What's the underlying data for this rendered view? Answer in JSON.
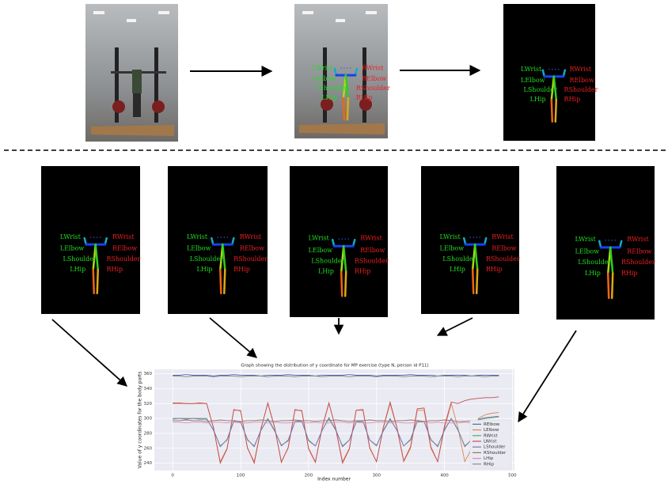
{
  "keypoint_labels": [
    "LWrist",
    "RWrist",
    "LElbow",
    "RElbow",
    "LShoulder",
    "RShoulder",
    "LHip",
    "RHip"
  ],
  "chart_data": {
    "type": "line",
    "title": "Graph showing the distribution of y coordinate for MP exercise (type N, person id P11)",
    "xlabel": "Index number",
    "ylabel": "Value of y coordinates for the body parts",
    "x": [
      0,
      10,
      20,
      30,
      40,
      50,
      60,
      70,
      80,
      90,
      100,
      110,
      120,
      130,
      140,
      150,
      160,
      170,
      180,
      190,
      200,
      210,
      220,
      230,
      240,
      250,
      260,
      270,
      280,
      290,
      300,
      310,
      320,
      330,
      340,
      350,
      360,
      370,
      380,
      390,
      400,
      410,
      420,
      430,
      440,
      450,
      460,
      470,
      480
    ],
    "xlim": [
      -27,
      503
    ],
    "xticks": [
      0,
      100,
      200,
      300,
      400,
      500
    ],
    "ylim": [
      230,
      366
    ],
    "yticks": [
      240,
      260,
      280,
      300,
      320,
      340,
      360
    ],
    "grid": true,
    "legend": "lower right",
    "series": [
      {
        "name": "RElbow",
        "color": "#4c72b0",
        "values": [
          358,
          358,
          359,
          358,
          358,
          358,
          357,
          358,
          358,
          359,
          358,
          358,
          358,
          357,
          358,
          358,
          358,
          359,
          358,
          358,
          358,
          357,
          358,
          358,
          358,
          358,
          359,
          358,
          358,
          358,
          357,
          358,
          358,
          358,
          358,
          359,
          358,
          358,
          358,
          357,
          358,
          358,
          358,
          358,
          357,
          358,
          358,
          358,
          358
        ]
      },
      {
        "name": "LElbow",
        "color": "#dd8452",
        "values": [
          320,
          320,
          320,
          320,
          320,
          320,
          287,
          242,
          260,
          311,
          311,
          260,
          242,
          287,
          320,
          287,
          242,
          260,
          311,
          311,
          260,
          242,
          287,
          320,
          287,
          242,
          260,
          311,
          311,
          260,
          242,
          287,
          320,
          287,
          242,
          260,
          311,
          311,
          260,
          242,
          287,
          320,
          287,
          242,
          260,
          300,
          305,
          307,
          308
        ]
      },
      {
        "name": "RWrist",
        "color": "#55a868",
        "values": [
          300,
          300,
          300,
          300,
          300,
          300,
          284,
          263,
          271,
          296,
          296,
          271,
          263,
          284,
          300,
          284,
          263,
          271,
          296,
          296,
          271,
          263,
          284,
          300,
          284,
          263,
          271,
          296,
          296,
          271,
          263,
          284,
          300,
          284,
          263,
          271,
          296,
          296,
          271,
          263,
          284,
          300,
          284,
          263,
          271,
          298,
          300,
          301,
          302
        ]
      },
      {
        "name": "LWrist",
        "color": "#c44e52",
        "values": [
          321,
          321,
          320,
          320,
          321,
          320,
          288,
          240,
          259,
          312,
          310,
          261,
          240,
          286,
          321,
          288,
          241,
          261,
          312,
          310,
          259,
          241,
          288,
          321,
          286,
          240,
          259,
          311,
          312,
          261,
          242,
          288,
          322,
          288,
          243,
          262,
          313,
          314,
          262,
          242,
          290,
          322,
          320,
          324,
          326,
          327,
          328,
          328,
          329
        ]
      },
      {
        "name": "LShoulder",
        "color": "#8172b3",
        "values": [
          299,
          300,
          299,
          300,
          299,
          299,
          285,
          262,
          272,
          297,
          295,
          272,
          262,
          285,
          299,
          283,
          264,
          270,
          296,
          297,
          270,
          263,
          284,
          301,
          285,
          262,
          271,
          295,
          296,
          271,
          264,
          283,
          299,
          284,
          263,
          272,
          297,
          296,
          272,
          262,
          285,
          300,
          285,
          262,
          272,
          299,
          301,
          302,
          303
        ]
      },
      {
        "name": "RShoulder",
        "color": "#937860",
        "values": [
          297,
          297,
          298,
          297,
          297,
          296,
          297,
          298,
          297,
          297,
          296,
          297,
          297,
          298,
          297,
          296,
          297,
          297,
          298,
          297,
          297,
          296,
          297,
          297,
          298,
          297,
          296,
          297,
          297,
          298,
          297,
          297,
          296,
          297,
          297,
          298,
          297,
          296,
          297,
          297,
          298,
          297,
          296,
          296,
          297,
          296,
          296,
          296,
          296
        ]
      },
      {
        "name": "LHip",
        "color": "#da8bc3",
        "values": [
          295,
          295,
          294,
          295,
          295,
          294,
          295,
          295,
          294,
          295,
          294,
          294,
          295,
          295,
          294,
          295,
          294,
          294,
          295,
          295,
          294,
          295,
          294,
          294,
          295,
          295,
          294,
          295,
          294,
          294,
          295,
          295,
          294,
          295,
          294,
          294,
          295,
          295,
          294,
          295,
          294,
          294,
          294,
          295,
          294,
          294,
          295,
          294,
          294
        ]
      },
      {
        "name": "RHip",
        "color": "#8c8c8c",
        "values": [
          357,
          357,
          356,
          357,
          357,
          357,
          356,
          357,
          357,
          357,
          356,
          357,
          357,
          357,
          356,
          357,
          357,
          357,
          356,
          357,
          357,
          357,
          356,
          357,
          357,
          357,
          356,
          357,
          357,
          357,
          356,
          357,
          357,
          357,
          356,
          357,
          357,
          357,
          356,
          357,
          357,
          357,
          356,
          357,
          357,
          357,
          356,
          357,
          357
        ]
      }
    ]
  }
}
